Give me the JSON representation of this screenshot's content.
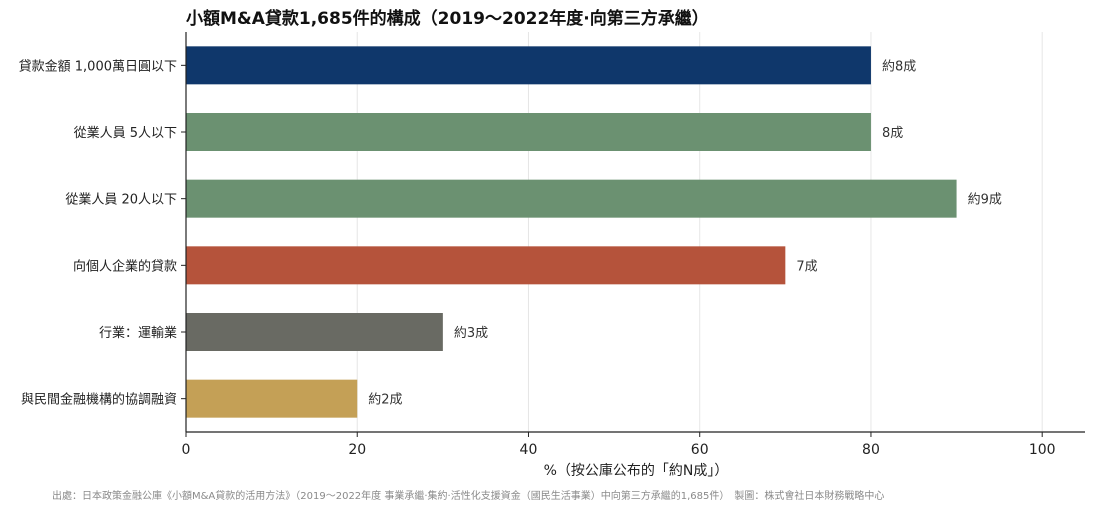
{
  "chart_data": {
    "type": "bar",
    "orientation": "horizontal",
    "title": "小額M&A貸款1,685件的構成（2019～2022年度·向第三方承繼）",
    "xlabel": "%（按公庫公布的「約N成」）",
    "ylabel": "",
    "xlim": [
      0,
      105
    ],
    "xticks": [
      0,
      20,
      40,
      60,
      80,
      100
    ],
    "grid": "vertical",
    "categories": [
      "貸款金額 1,000萬日圓以下",
      "從業人員 5人以下",
      "從業人員 20人以下",
      "向個人企業的貸款",
      "行業：運輸業",
      "與民間金融機構的協調融資"
    ],
    "values": [
      80,
      80,
      90,
      70,
      30,
      20
    ],
    "data_labels": [
      "約8成",
      "8成",
      "約9成",
      "7成",
      "約3成",
      "約2成"
    ],
    "colors": [
      "#0f376b",
      "#6b9171",
      "#6b9171",
      "#b5533b",
      "#696a63",
      "#c4a056"
    ],
    "source": "出處：日本政策金融公庫《小額M&A貸款的活用方法》（2019～2022年度 事業承繼·集約·活性化支援資金（國民生活事業）中向第三方承繼的1,685件）　製圖：株式會社日本財務戰略中心"
  }
}
